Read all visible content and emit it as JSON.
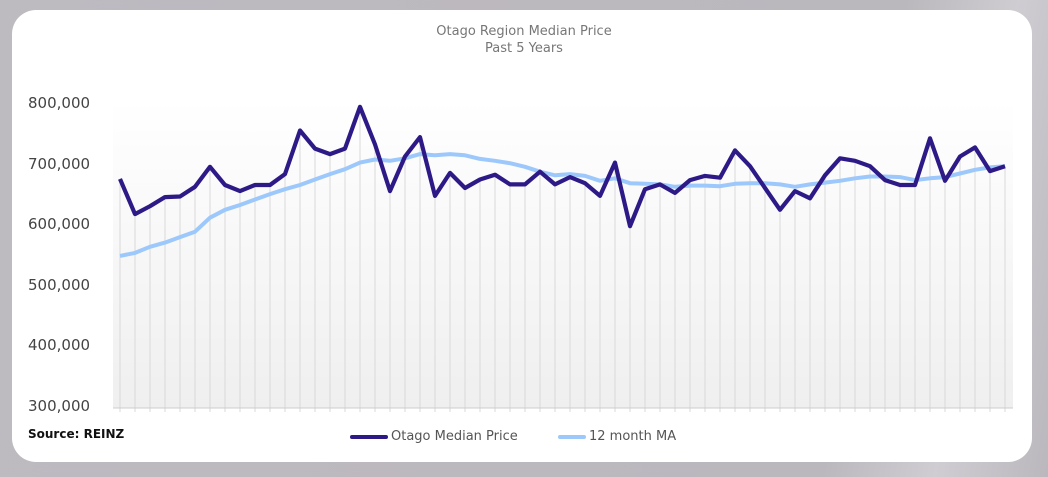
{
  "chart_data": {
    "type": "line",
    "title": "Otago Region Median Price",
    "subtitle": "Past 5 Years",
    "xlabel": "",
    "ylabel": "",
    "ylim": [
      300000,
      800000
    ],
    "yticks": [
      "800,000",
      "700,000",
      "600,000",
      "500,000",
      "400,000",
      "300,000"
    ],
    "ytick_values": [
      800000,
      700000,
      600000,
      500000,
      400000,
      300000
    ],
    "grid": "vertical lines at each month",
    "legend_position": "bottom",
    "source": "Source: REINZ",
    "series": [
      {
        "name": "Otago Median Price",
        "color": "#2e1a87",
        "values": [
          678000,
          620000,
          633000,
          648000,
          649000,
          665000,
          698000,
          668000,
          658000,
          668000,
          668000,
          686000,
          758000,
          728000,
          719000,
          728000,
          797000,
          735000,
          658000,
          715000,
          747000,
          650000,
          688000,
          663000,
          677000,
          685000,
          669000,
          669000,
          690000,
          669000,
          681000,
          671000,
          650000,
          705000,
          600000,
          661000,
          669000,
          655000,
          676000,
          683000,
          680000,
          725000,
          699000,
          663000,
          627000,
          658000,
          646000,
          684000,
          712000,
          708000,
          699000,
          676000,
          668000,
          668000,
          745000,
          675000,
          715000,
          730000,
          691000,
          699000
        ]
      },
      {
        "name": "12 month MA",
        "color": "#9dc8fb",
        "values": [
          551000,
          556000,
          566000,
          573000,
          582000,
          591000,
          614000,
          627000,
          635000,
          644000,
          653000,
          661000,
          668000,
          677000,
          686000,
          694000,
          705000,
          710000,
          708000,
          712000,
          719000,
          717000,
          719000,
          717000,
          711000,
          708000,
          704000,
          698000,
          690000,
          684000,
          686000,
          683000,
          675000,
          679000,
          671000,
          670000,
          669000,
          665000,
          667000,
          667000,
          666000,
          670000,
          671000,
          671000,
          669000,
          665000,
          669000,
          672000,
          675000,
          679000,
          682000,
          682000,
          681000,
          676000,
          679000,
          681000,
          687000,
          693000,
          697000,
          699000
        ]
      }
    ]
  }
}
